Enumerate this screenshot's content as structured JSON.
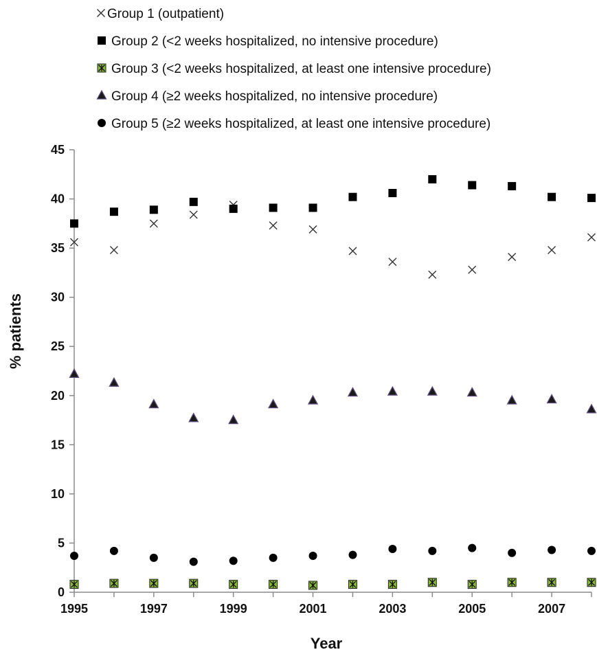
{
  "chart_data": {
    "type": "scatter",
    "xlabel": "Year",
    "ylabel": "% patients",
    "xlim": [
      1995,
      2008
    ],
    "ylim": [
      0,
      45
    ],
    "x_ticks": [
      "1995",
      "1997",
      "1999",
      "2001",
      "2003",
      "2005",
      "2007"
    ],
    "y_ticks": [
      "0",
      "5",
      "10",
      "15",
      "20",
      "25",
      "30",
      "35",
      "40",
      "45"
    ],
    "grid": false,
    "legend_position": "top-left",
    "x": [
      1995,
      1996,
      1997,
      1998,
      1999,
      2000,
      2001,
      2002,
      2003,
      2004,
      2005,
      2006,
      2007,
      2008
    ],
    "series": [
      {
        "name": "Group 1 (outpatient)",
        "marker": "x",
        "color": "#333333",
        "values": [
          35.6,
          34.8,
          37.5,
          38.4,
          39.4,
          37.3,
          36.9,
          34.7,
          33.6,
          32.3,
          32.8,
          34.1,
          34.8,
          36.1
        ]
      },
      {
        "name": "Group 2 (<2 weeks hospitalized, no intensive procedure)",
        "marker": "square",
        "color": "#000000",
        "values": [
          37.5,
          38.7,
          38.9,
          39.7,
          39.0,
          39.1,
          39.1,
          40.2,
          40.6,
          42.0,
          41.4,
          41.3,
          40.2,
          40.1
        ]
      },
      {
        "name": "Group 3 (<2 weeks hospitalized, at least one intensive procedure)",
        "marker": "square-star",
        "color": "#8ab83a",
        "values": [
          0.8,
          0.9,
          0.9,
          0.9,
          0.8,
          0.8,
          0.7,
          0.8,
          0.8,
          1.0,
          0.8,
          1.0,
          1.0,
          1.0
        ]
      },
      {
        "name": "Group 4 (≥2 weeks hospitalized, no intensive procedure)",
        "marker": "triangle",
        "color": "#5b4a7a",
        "values": [
          22.2,
          21.3,
          19.1,
          17.7,
          17.5,
          19.1,
          19.5,
          20.3,
          20.4,
          20.4,
          20.3,
          19.5,
          19.6,
          18.6
        ]
      },
      {
        "name": "Group 5 (≥2 weeks hospitalized, at least one intensive procedure)",
        "marker": "circle",
        "color": "#000000",
        "values": [
          3.7,
          4.2,
          3.5,
          3.1,
          3.2,
          3.5,
          3.7,
          3.8,
          4.4,
          4.2,
          4.5,
          4.0,
          4.3,
          4.2
        ]
      }
    ]
  }
}
